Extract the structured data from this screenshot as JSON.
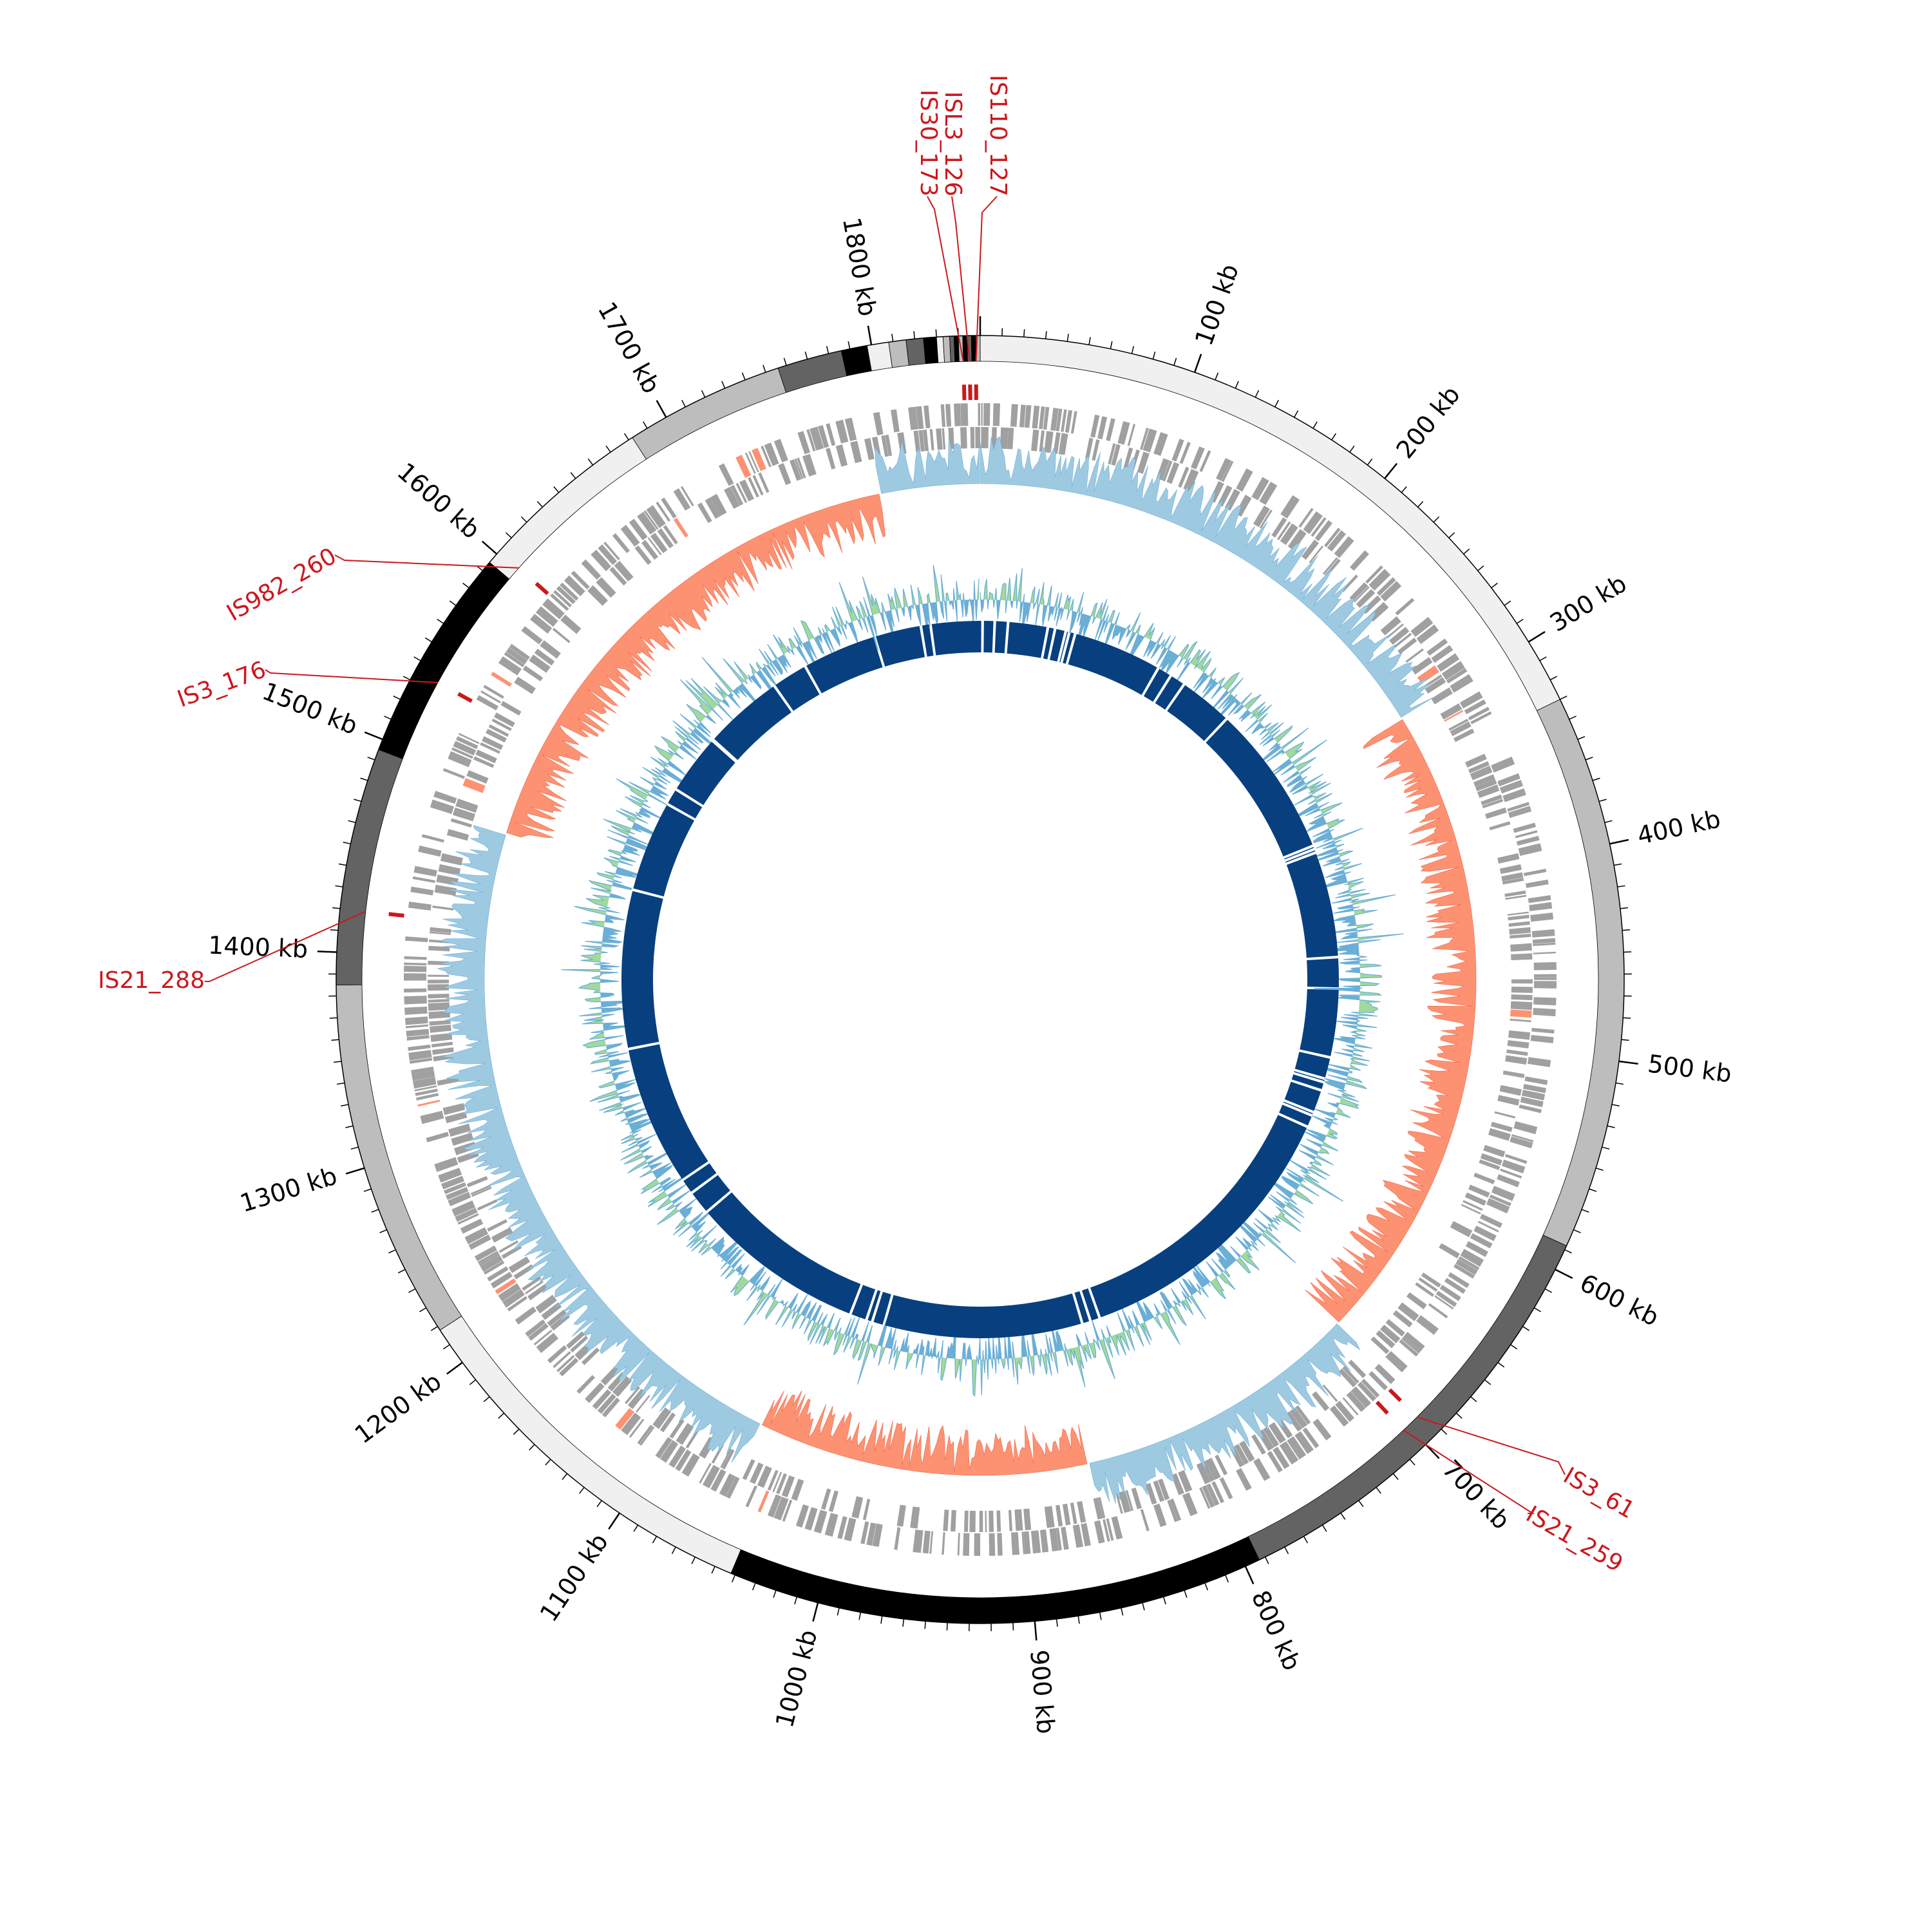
{
  "genome": {
    "length_kb": 1850
  },
  "axis_labels": [
    {
      "kb": 100,
      "text": "100 kb"
    },
    {
      "kb": 200,
      "text": "200 kb"
    },
    {
      "kb": 300,
      "text": "300 kb"
    },
    {
      "kb": 400,
      "text": "400 kb"
    },
    {
      "kb": 500,
      "text": "500 kb"
    },
    {
      "kb": 600,
      "text": "600 kb"
    },
    {
      "kb": 700,
      "text": "700 kb"
    },
    {
      "kb": 800,
      "text": "800 kb"
    },
    {
      "kb": 900,
      "text": "900 kb"
    },
    {
      "kb": 1000,
      "text": "1000 kb"
    },
    {
      "kb": 1100,
      "text": "1100 kb"
    },
    {
      "kb": 1200,
      "text": "1200 kb"
    },
    {
      "kb": 1300,
      "text": "1300 kb"
    },
    {
      "kb": 1400,
      "text": "1400 kb"
    },
    {
      "kb": 1500,
      "text": "1500 kb"
    },
    {
      "kb": 1600,
      "text": "1600 kb"
    },
    {
      "kb": 1700,
      "text": "1700 kb"
    },
    {
      "kb": 1800,
      "text": "1800 kb"
    }
  ],
  "contigs": [
    {
      "start": 0,
      "end": 330,
      "color": "#f0f0f0"
    },
    {
      "start": 330,
      "end": 588,
      "color": "#bdbdbd"
    },
    {
      "start": 588,
      "end": 793,
      "color": "#636363"
    },
    {
      "start": 793,
      "end": 1042,
      "color": "#000000"
    },
    {
      "start": 1042,
      "end": 1218,
      "color": "#f0f0f0"
    },
    {
      "start": 1218,
      "end": 1385,
      "color": "#bdbdbd"
    },
    {
      "start": 1385,
      "end": 1495,
      "color": "#636363"
    },
    {
      "start": 1495,
      "end": 1595,
      "color": "#000000"
    },
    {
      "start": 1595,
      "end": 1682,
      "color": "#f0f0f0"
    },
    {
      "start": 1682,
      "end": 1756,
      "color": "#bdbdbd"
    },
    {
      "start": 1756,
      "end": 1786,
      "color": "#636363"
    },
    {
      "start": 1786,
      "end": 1798,
      "color": "#000000"
    },
    {
      "start": 1798,
      "end": 1808,
      "color": "#f0f0f0"
    },
    {
      "start": 1808,
      "end": 1816,
      "color": "#bdbdbd"
    },
    {
      "start": 1816,
      "end": 1824,
      "color": "#636363"
    },
    {
      "start": 1824,
      "end": 1830,
      "color": "#000000"
    },
    {
      "start": 1830,
      "end": 1833,
      "color": "#f0f0f0"
    },
    {
      "start": 1833,
      "end": 1836,
      "color": "#bdbdbd"
    },
    {
      "start": 1836,
      "end": 1838,
      "color": "#636363"
    },
    {
      "start": 1838,
      "end": 1840,
      "color": "#000000"
    },
    {
      "start": 1840,
      "end": 1842,
      "color": "#bdbdbd"
    },
    {
      "start": 1842,
      "end": 1844,
      "color": "#000000"
    },
    {
      "start": 1844,
      "end": 1846,
      "color": "#636363"
    },
    {
      "start": 1846,
      "end": 1848,
      "color": "#000000"
    },
    {
      "start": 1848,
      "end": 1850,
      "color": "#bdbdbd"
    }
  ],
  "is_elements": [
    {
      "name": "IS30_173",
      "kb": 1842
    },
    {
      "name": "ISL3_126",
      "kb": 1845
    },
    {
      "name": "IS110_127",
      "kb": 1848
    },
    {
      "name": "IS3_61",
      "kb": 694
    },
    {
      "name": "IS21_259",
      "kb": 703
    },
    {
      "name": "IS982_260",
      "kb": 1602
    },
    {
      "name": "IS3_176",
      "kb": 1535
    },
    {
      "name": "IS21_288",
      "kb": 1420
    }
  ],
  "gc_skew": {
    "positive_color": "#9ecae1",
    "negative_color": "#fc9272",
    "regions": [
      {
        "start": 0,
        "end": 300,
        "sign": "positive"
      },
      {
        "start": 300,
        "end": 688,
        "sign": "negative"
      },
      {
        "start": 688,
        "end": 860,
        "sign": "positive"
      },
      {
        "start": 860,
        "end": 1060,
        "sign": "negative"
      },
      {
        "start": 1060,
        "end": 1475,
        "sign": "positive"
      },
      {
        "start": 1475,
        "end": 1790,
        "sign": "negative"
      },
      {
        "start": 1790,
        "end": 1850,
        "sign": "positive"
      }
    ]
  },
  "gc_content": {
    "above_color": "#a1d99b",
    "below_color": "#6baed6"
  },
  "feature_track": {
    "color": "#a0a0a0",
    "highlight_color": "#fc9272"
  },
  "inner_ring": {
    "color": "#08407f",
    "gaps": [
      2,
      12,
      23,
      56,
      62,
      71,
      74,
      79,
      153,
      165,
      178,
      223,
      350,
      353,
      356,
      444,
      470,
      527,
      545,
      548,
      555,
      574,
      577,
      587,
      825,
      833,
      840,
      1005,
      1015,
      1020,
      1034,
      1180,
      1200,
      1213,
      1330,
      1462,
      1538,
      1552,
      1602,
      1603,
      1670,
      1700,
      1762,
      1801,
      1809
    ]
  }
}
